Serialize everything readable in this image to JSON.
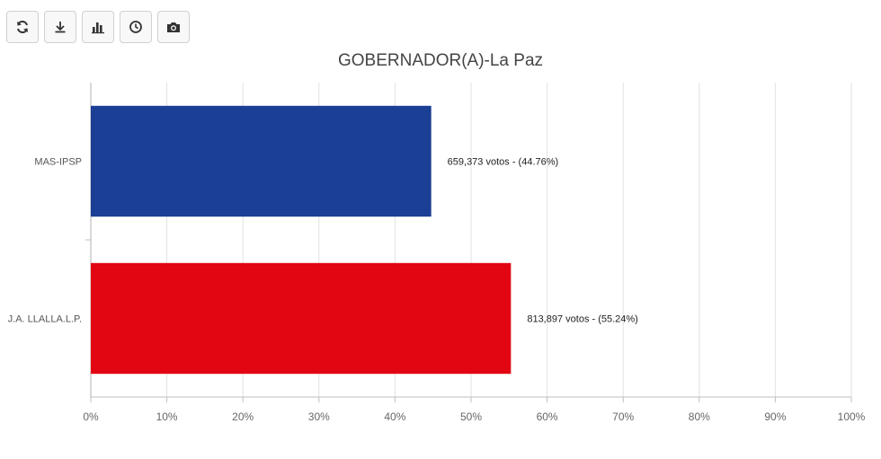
{
  "toolbar": {
    "buttons": [
      {
        "icon": "refresh-icon"
      },
      {
        "icon": "download-icon"
      },
      {
        "icon": "bar-chart-icon"
      },
      {
        "icon": "clock-icon"
      },
      {
        "icon": "camera-icon"
      }
    ]
  },
  "chart_data": {
    "type": "bar",
    "orientation": "horizontal",
    "title": "GOBERNADOR(A)-La Paz",
    "categories": [
      "MAS-IPSP",
      "J.A. LLALLA.L.P."
    ],
    "values": [
      44.76,
      55.24
    ],
    "data_labels": [
      "659,373 votos - (44.76%)",
      "813,897 votos - (55.24%)"
    ],
    "colors": [
      "#1a3f94",
      "#e20613"
    ],
    "xlim": [
      0,
      100
    ],
    "x_ticks": [
      "0%",
      "10%",
      "20%",
      "30%",
      "40%",
      "50%",
      "60%",
      "70%",
      "80%",
      "90%",
      "100%"
    ],
    "grid": true
  }
}
